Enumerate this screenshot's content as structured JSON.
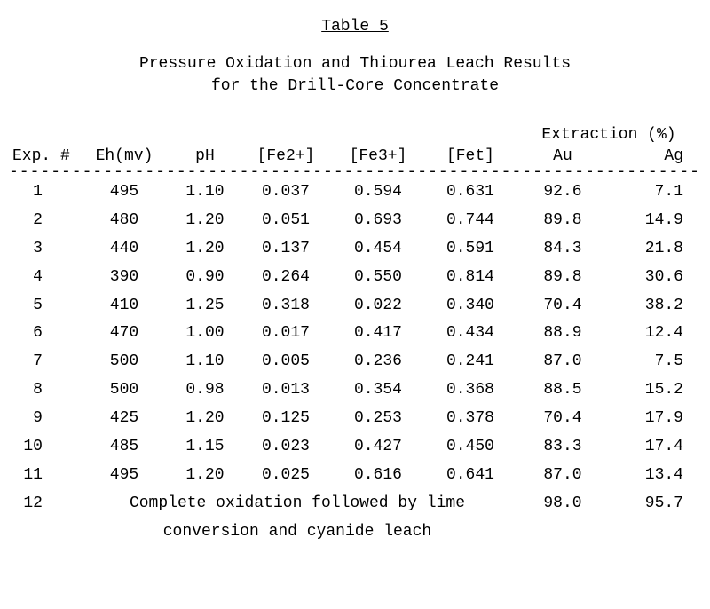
{
  "title": "Table 5",
  "subtitle_line1": "Pressure Oxidation and Thiourea Leach Results",
  "subtitle_line2": "for the Drill-Core Concentrate",
  "headers": {
    "extraction_group": "Extraction (%)",
    "exp": "Exp. #",
    "eh": "Eh(mv)",
    "ph": "pH",
    "fe2": "[Fe2+]",
    "fe3": "[Fe3+]",
    "fet": "[Fet]",
    "au": "Au",
    "ag": "Ag"
  },
  "rows": [
    {
      "exp": "1",
      "eh": "495",
      "ph": "1.10",
      "fe2": "0.037",
      "fe3": "0.594",
      "fet": "0.631",
      "au": "92.6",
      "ag": "7.1"
    },
    {
      "exp": "2",
      "eh": "480",
      "ph": "1.20",
      "fe2": "0.051",
      "fe3": "0.693",
      "fet": "0.744",
      "au": "89.8",
      "ag": "14.9"
    },
    {
      "exp": "3",
      "eh": "440",
      "ph": "1.20",
      "fe2": "0.137",
      "fe3": "0.454",
      "fet": "0.591",
      "au": "84.3",
      "ag": "21.8"
    },
    {
      "exp": "4",
      "eh": "390",
      "ph": "0.90",
      "fe2": "0.264",
      "fe3": "0.550",
      "fet": "0.814",
      "au": "89.8",
      "ag": "30.6"
    },
    {
      "exp": "5",
      "eh": "410",
      "ph": "1.25",
      "fe2": "0.318",
      "fe3": "0.022",
      "fet": "0.340",
      "au": "70.4",
      "ag": "38.2"
    },
    {
      "exp": "6",
      "eh": "470",
      "ph": "1.00",
      "fe2": "0.017",
      "fe3": "0.417",
      "fet": "0.434",
      "au": "88.9",
      "ag": "12.4"
    },
    {
      "exp": "7",
      "eh": "500",
      "ph": "1.10",
      "fe2": "0.005",
      "fe3": "0.236",
      "fet": "0.241",
      "au": "87.0",
      "ag": "7.5"
    },
    {
      "exp": "8",
      "eh": "500",
      "ph": "0.98",
      "fe2": "0.013",
      "fe3": "0.354",
      "fet": "0.368",
      "au": "88.5",
      "ag": "15.2"
    },
    {
      "exp": "9",
      "eh": "425",
      "ph": "1.20",
      "fe2": "0.125",
      "fe3": "0.253",
      "fet": "0.378",
      "au": "70.4",
      "ag": "17.9"
    },
    {
      "exp": "10",
      "eh": "485",
      "ph": "1.15",
      "fe2": "0.023",
      "fe3": "0.427",
      "fet": "0.450",
      "au": "83.3",
      "ag": "17.4"
    },
    {
      "exp": "11",
      "eh": "495",
      "ph": "1.20",
      "fe2": "0.025",
      "fe3": "0.616",
      "fet": "0.641",
      "au": "87.0",
      "ag": "13.4"
    }
  ],
  "last_row": {
    "exp": "12",
    "note_line1": "Complete oxidation followed by lime",
    "note_line2": "conversion and cyanide leach",
    "au": "98.0",
    "ag": "95.7"
  },
  "dash_line": "-----------------------------------------------------------------------------",
  "style": {
    "font_family": "Courier New",
    "font_size_pt": 14,
    "text_color": "#000000",
    "background_color": "#ffffff"
  }
}
